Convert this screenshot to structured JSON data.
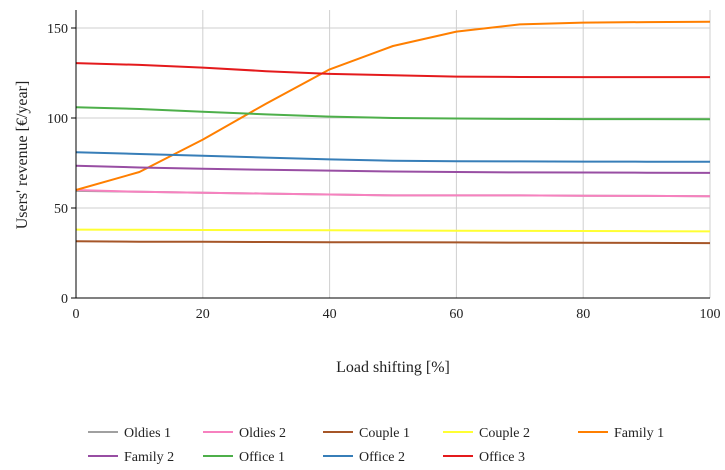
{
  "chart_data": {
    "type": "line",
    "title": "",
    "xlabel": "Load shifting [%]",
    "ylabel": "Users' revenue [€/year]",
    "xlim": [
      0,
      100
    ],
    "ylim": [
      0,
      160
    ],
    "xticks": [
      0,
      20,
      40,
      60,
      80,
      100
    ],
    "yticks": [
      0,
      50,
      100,
      150
    ],
    "grid": true,
    "legend_position": "bottom",
    "x": [
      0,
      10,
      20,
      30,
      40,
      50,
      60,
      70,
      80,
      90,
      100
    ],
    "series": [
      {
        "name": "Oldies 1",
        "color": "#a0a0a0",
        "values": [
          59.5,
          59,
          58.5,
          58,
          57.5,
          57,
          57,
          57,
          56.8,
          56.7,
          56.5
        ]
      },
      {
        "name": "Oldies 2",
        "color": "#f781bf",
        "values": [
          60,
          59,
          58.5,
          58,
          57.5,
          57,
          57,
          57,
          56.8,
          56.7,
          56.5
        ]
      },
      {
        "name": "Couple 1",
        "color": "#a65628",
        "values": [
          31.5,
          31.3,
          31.2,
          31.1,
          31,
          31,
          30.9,
          30.8,
          30.7,
          30.6,
          30.5
        ]
      },
      {
        "name": "Couple 2",
        "color": "#ffff33",
        "values": [
          38,
          37.9,
          37.8,
          37.7,
          37.6,
          37.5,
          37.4,
          37.3,
          37.2,
          37.1,
          37
        ]
      },
      {
        "name": "Family 1",
        "color": "#ff7f00",
        "values": [
          60,
          70,
          88,
          108,
          127,
          140,
          148,
          152,
          153,
          153.3,
          153.5
        ]
      },
      {
        "name": "Family 2",
        "color": "#984ea3",
        "values": [
          73.5,
          72.5,
          71.8,
          71.2,
          70.8,
          70.3,
          70,
          69.8,
          69.7,
          69.6,
          69.5
        ]
      },
      {
        "name": "Office 1",
        "color": "#4daf4a",
        "values": [
          106,
          105,
          103.5,
          102,
          100.8,
          100,
          99.7,
          99.5,
          99.4,
          99.4,
          99.3
        ]
      },
      {
        "name": "Office 2",
        "color": "#377eb8",
        "values": [
          81,
          80,
          79,
          78,
          77,
          76.3,
          76,
          75.9,
          75.8,
          75.7,
          75.7
        ]
      },
      {
        "name": "Office 3",
        "color": "#e41a1c",
        "values": [
          130.5,
          129.5,
          128,
          126,
          124.5,
          123.8,
          123,
          122.8,
          122.7,
          122.7,
          122.7
        ]
      }
    ]
  }
}
